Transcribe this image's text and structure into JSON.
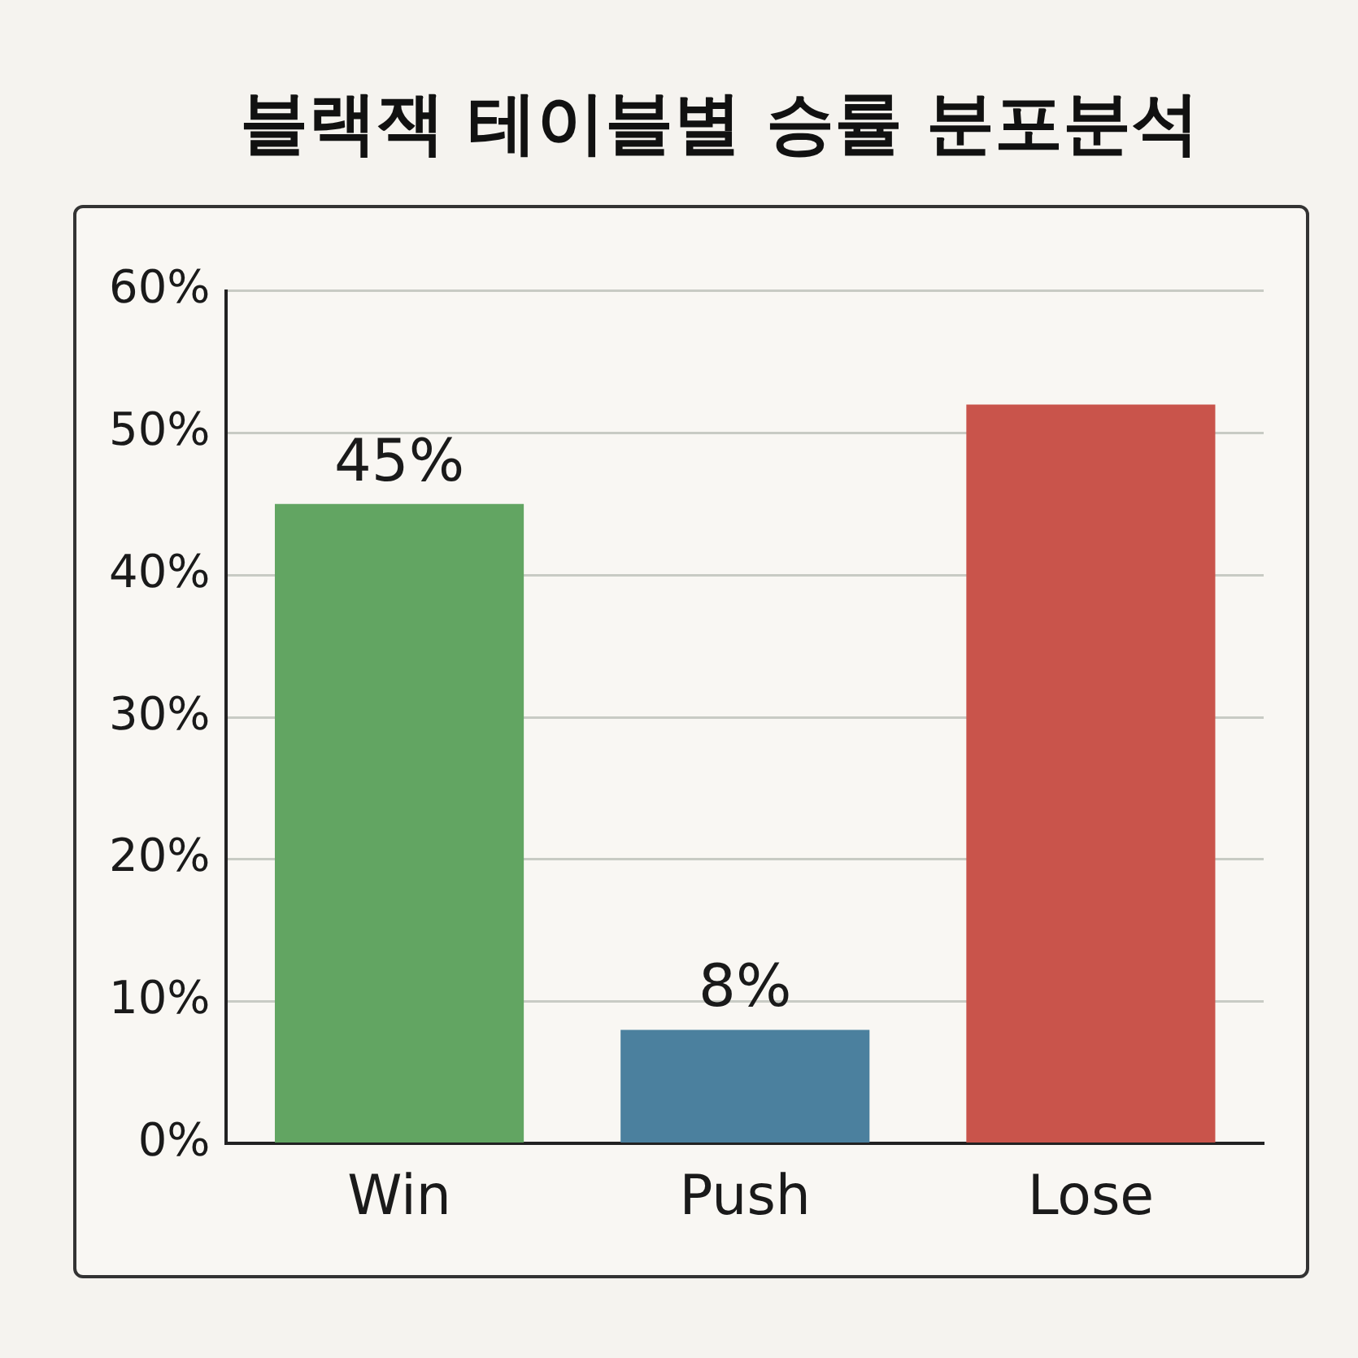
{
  "chart_data": {
    "type": "bar",
    "title": "블랙잭 테이블별 승률 분포분석",
    "categories": [
      "Win",
      "Push",
      "Lose"
    ],
    "values": [
      45,
      8,
      52
    ],
    "colors": [
      "#62a562",
      "#4b809e",
      "#c9544b"
    ],
    "value_labels": [
      "45%",
      "8%",
      null
    ],
    "ylim": [
      0,
      60
    ],
    "yticks": [
      {
        "value": 0,
        "label": "0%"
      },
      {
        "value": 10,
        "label": "10%"
      },
      {
        "value": 20,
        "label": "20%"
      },
      {
        "value": 30,
        "label": "30%"
      },
      {
        "value": 40,
        "label": "40%"
      },
      {
        "value": 50,
        "label": "50%"
      },
      {
        "value": 60,
        "label": "60%"
      }
    ],
    "grid": "y",
    "legend": false
  }
}
